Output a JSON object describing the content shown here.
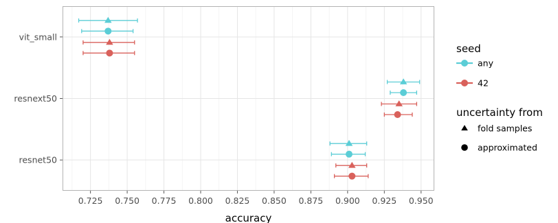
{
  "chart_data": {
    "type": "scatter",
    "xlabel": "accuracy",
    "ylabel": "",
    "xlim": [
      0.706,
      0.959
    ],
    "x_ticks": [
      "0.725",
      "0.750",
      "0.775",
      "0.800",
      "0.825",
      "0.850",
      "0.875",
      "0.900",
      "0.925",
      "0.950"
    ],
    "y_categories": [
      "vit_small",
      "resnext50",
      "resnet50"
    ],
    "grid": true,
    "legend_placement": "right",
    "colors": {
      "any": "#5bcdd6",
      "42": "#d9615b"
    },
    "legend": {
      "seed_title": "seed",
      "seed_entries": [
        {
          "label": "any",
          "color": "#5bcdd6"
        },
        {
          "label": "42",
          "color": "#d9615b"
        }
      ],
      "uncertainty_title": "uncertainty from",
      "uncertainty_entries": [
        {
          "label": "fold samples",
          "shape": "triangle"
        },
        {
          "label": "approximated",
          "shape": "circle"
        }
      ]
    },
    "points": [
      {
        "model": "vit_small",
        "seed": "any",
        "uncertainty": "fold samples",
        "x": 0.737,
        "xmin": 0.717,
        "xmax": 0.757
      },
      {
        "model": "vit_small",
        "seed": "any",
        "uncertainty": "approximated",
        "x": 0.737,
        "xmin": 0.719,
        "xmax": 0.754
      },
      {
        "model": "vit_small",
        "seed": "42",
        "uncertainty": "fold samples",
        "x": 0.738,
        "xmin": 0.72,
        "xmax": 0.755
      },
      {
        "model": "vit_small",
        "seed": "42",
        "uncertainty": "approximated",
        "x": 0.738,
        "xmin": 0.72,
        "xmax": 0.755
      },
      {
        "model": "resnext50",
        "seed": "any",
        "uncertainty": "fold samples",
        "x": 0.938,
        "xmin": 0.927,
        "xmax": 0.949
      },
      {
        "model": "resnext50",
        "seed": "any",
        "uncertainty": "approximated",
        "x": 0.938,
        "xmin": 0.929,
        "xmax": 0.947
      },
      {
        "model": "resnext50",
        "seed": "42",
        "uncertainty": "fold samples",
        "x": 0.935,
        "xmin": 0.923,
        "xmax": 0.947
      },
      {
        "model": "resnext50",
        "seed": "42",
        "uncertainty": "approximated",
        "x": 0.934,
        "xmin": 0.925,
        "xmax": 0.944
      },
      {
        "model": "resnet50",
        "seed": "any",
        "uncertainty": "fold samples",
        "x": 0.901,
        "xmin": 0.888,
        "xmax": 0.913
      },
      {
        "model": "resnet50",
        "seed": "any",
        "uncertainty": "approximated",
        "x": 0.901,
        "xmin": 0.889,
        "xmax": 0.912
      },
      {
        "model": "resnet50",
        "seed": "42",
        "uncertainty": "fold samples",
        "x": 0.903,
        "xmin": 0.892,
        "xmax": 0.913
      },
      {
        "model": "resnet50",
        "seed": "42",
        "uncertainty": "approximated",
        "x": 0.903,
        "xmin": 0.891,
        "xmax": 0.914
      }
    ]
  }
}
